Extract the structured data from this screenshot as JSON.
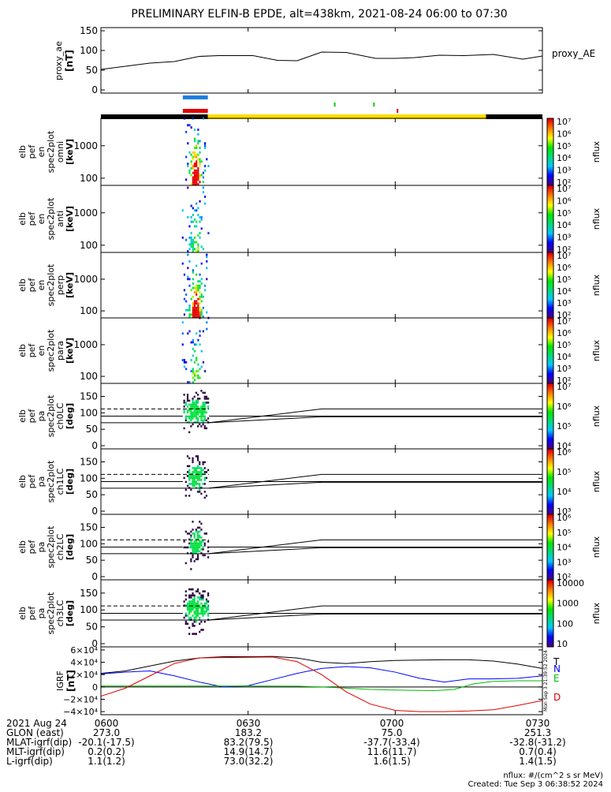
{
  "title": "PRELIMINARY ELFIN-B EPDE, alt=438km, 2021-08-24 06:00 to 07:30",
  "chart_data": [
    {
      "type": "line",
      "id": "proxy_ae",
      "ylabel": [
        "proxy_ae",
        "[nT]"
      ],
      "legend": "proxy_AE",
      "ylim": [
        0,
        150
      ],
      "yticks": [
        "0",
        "50",
        "100",
        "150"
      ],
      "yticks_values": [
        0,
        50,
        100,
        150
      ],
      "x_minutes": [
        0,
        10,
        15,
        20,
        24,
        31,
        36,
        40,
        45,
        50,
        56,
        60,
        64,
        69,
        74,
        80,
        86,
        90
      ],
      "values": [
        52,
        68,
        72,
        85,
        87,
        87,
        75,
        74,
        96,
        95,
        80,
        80,
        82,
        88,
        87,
        90,
        78,
        86
      ]
    },
    {
      "type": "timeline",
      "id": "status-bars",
      "bars": [
        {
          "color": "#1f7fe0",
          "start_min": 16.7,
          "end_min": 21.8
        },
        {
          "color": "#e00000",
          "start_min": 16.7,
          "end_min": 21.8
        }
      ],
      "ticks": [
        {
          "color": "#00cc00",
          "min": 47.5
        },
        {
          "color": "#00cc00",
          "min": 55.5
        },
        {
          "color": "#e00000",
          "min": 60.3
        }
      ],
      "strip": [
        {
          "color": "#000000",
          "start_min": 0,
          "end_min": 21.8
        },
        {
          "color": "#ffdd00",
          "start_min": 21.8,
          "end_min": 78.5
        },
        {
          "color": "#000000",
          "start_min": 78.5,
          "end_min": 90
        }
      ]
    },
    {
      "type": "heatmap",
      "id": "spec-omni",
      "ylabel": [
        "elb",
        "pef",
        "en",
        "spec2plot",
        "omni",
        "[keV]"
      ],
      "yticks": [
        "100",
        "1000"
      ],
      "yticks_values": [
        100,
        1000
      ],
      "scale": "log",
      "ylim": [
        60,
        7000
      ],
      "cbar_label": "nflux",
      "cbar_ticks": [
        "10²",
        "10³",
        "10⁴",
        "10⁵",
        "10⁶",
        "10⁷"
      ]
    },
    {
      "type": "heatmap",
      "id": "spec-anti",
      "ylabel": [
        "elb",
        "pef",
        "en",
        "spec2plot",
        "anti",
        "[keV]"
      ],
      "yticks": [
        "100",
        "1000"
      ],
      "yticks_values": [
        100,
        1000
      ],
      "scale": "log",
      "ylim": [
        60,
        7000
      ],
      "cbar_label": "nflux",
      "cbar_ticks": [
        "10²",
        "10³",
        "10⁴",
        "10⁵",
        "10⁶",
        "10⁷"
      ]
    },
    {
      "type": "heatmap",
      "id": "spec-perp",
      "ylabel": [
        "elb",
        "pef",
        "en",
        "spec2plot",
        "perp",
        "[keV]"
      ],
      "yticks": [
        "100",
        "1000"
      ],
      "yticks_values": [
        100,
        1000
      ],
      "scale": "log",
      "ylim": [
        60,
        7000
      ],
      "cbar_label": "nflux",
      "cbar_ticks": [
        "10²",
        "10³",
        "10⁴",
        "10⁵",
        "10⁶",
        "10⁷"
      ]
    },
    {
      "type": "heatmap",
      "id": "spec-para",
      "ylabel": [
        "elb",
        "pef",
        "en",
        "spec2plot",
        "para",
        "[keV]"
      ],
      "yticks": [
        "100",
        "1000"
      ],
      "yticks_values": [
        100,
        1000
      ],
      "scale": "log",
      "ylim": [
        60,
        7000
      ],
      "cbar_label": "nflux",
      "cbar_ticks": [
        "10²",
        "10³",
        "10⁴",
        "10⁵",
        "10⁶",
        "10⁷"
      ]
    },
    {
      "type": "heatmap",
      "id": "pa-ch0",
      "ylabel": [
        "elb",
        "pef",
        "pa",
        "spec2plot",
        "ch0LC",
        "[deg]"
      ],
      "yticks": [
        "0",
        "50",
        "100",
        "150"
      ],
      "yticks_values": [
        0,
        50,
        100,
        150
      ],
      "ylim": [
        0,
        180
      ],
      "cbar_label": "nflux",
      "cbar_ticks": [
        "10⁴",
        "10⁵",
        "10⁶",
        "10⁷"
      ]
    },
    {
      "type": "heatmap",
      "id": "pa-ch1",
      "ylabel": [
        "elb",
        "pef",
        "pa",
        "spec2plot",
        "ch1LC",
        "[deg]"
      ],
      "yticks": [
        "0",
        "50",
        "100",
        "150"
      ],
      "yticks_values": [
        0,
        50,
        100,
        150
      ],
      "ylim": [
        0,
        180
      ],
      "cbar_label": "nflux",
      "cbar_ticks": [
        "10³",
        "10⁴",
        "10⁵",
        "10⁶"
      ]
    },
    {
      "type": "heatmap",
      "id": "pa-ch2",
      "ylabel": [
        "elb",
        "pef",
        "pa",
        "spec2plot",
        "ch2LC",
        "[deg]"
      ],
      "yticks": [
        "0",
        "50",
        "100",
        "150"
      ],
      "yticks_values": [
        0,
        50,
        100,
        150
      ],
      "ylim": [
        0,
        180
      ],
      "cbar_label": "nflux",
      "cbar_ticks": [
        "10²",
        "10³",
        "10⁴",
        "10⁵",
        "10⁶"
      ]
    },
    {
      "type": "heatmap",
      "id": "pa-ch3",
      "ylabel": [
        "elb",
        "pef",
        "pa",
        "spec2plot",
        "ch3LC",
        "[deg]"
      ],
      "yticks": [
        "0",
        "50",
        "100",
        "150"
      ],
      "yticks_values": [
        0,
        50,
        100,
        150
      ],
      "ylim": [
        0,
        180
      ],
      "cbar_label": "nflux",
      "cbar_ticks": [
        "10",
        "100",
        "1000",
        "10000"
      ]
    },
    {
      "type": "line",
      "id": "igrf",
      "ylabel": [
        "IGRF",
        "[nT]"
      ],
      "ylim": [
        -45000,
        65000
      ],
      "yticks": [
        "−4×10⁴",
        "−2×10⁴",
        "0",
        "2×10⁴",
        "4×10⁴",
        "6×10⁴"
      ],
      "yticks_values": [
        -40000,
        -20000,
        0,
        20000,
        40000,
        60000
      ],
      "stamp": "Mon Sep  3 21:39:52 2024",
      "series": [
        {
          "name": "T",
          "color": "#000000",
          "x_minutes": [
            0,
            5,
            10,
            15,
            20,
            25,
            30,
            35,
            40,
            45,
            50,
            55,
            60,
            65,
            70,
            75,
            80,
            85,
            90
          ],
          "values": [
            22000,
            26000,
            34000,
            42000,
            47000,
            49000,
            49000,
            49500,
            47000,
            40000,
            38000,
            41000,
            43000,
            43500,
            44000,
            44000,
            42000,
            37000,
            30000
          ]
        },
        {
          "name": "N",
          "color": "#0000ff",
          "x_minutes": [
            0,
            5,
            10,
            15,
            20,
            25,
            30,
            35,
            40,
            45,
            50,
            55,
            60,
            65,
            70,
            75,
            80,
            85,
            90
          ],
          "values": [
            21000,
            24000,
            26000,
            18000,
            8000,
            0,
            2000,
            12000,
            22000,
            30000,
            33000,
            31000,
            24000,
            14000,
            8000,
            13000,
            13000,
            14000,
            18000
          ]
        },
        {
          "name": "E",
          "color": "#00bb00",
          "x_minutes": [
            0,
            10,
            20,
            30,
            40,
            45,
            50,
            55,
            60,
            63,
            68,
            72,
            76,
            80,
            85,
            90
          ],
          "values": [
            1500,
            1500,
            1500,
            1500,
            1200,
            0,
            -2000,
            -4000,
            -5000,
            -5500,
            -6000,
            -4000,
            5000,
            9000,
            10000,
            10000
          ]
        },
        {
          "name": "D",
          "color": "#dd0000",
          "x_minutes": [
            0,
            5,
            10,
            15,
            20,
            25,
            30,
            35,
            40,
            45,
            50,
            55,
            60,
            65,
            70,
            75,
            80,
            85,
            90
          ],
          "values": [
            -15000,
            -2000,
            18000,
            38000,
            47000,
            47500,
            48000,
            48500,
            41000,
            20000,
            -8000,
            -28000,
            -38000,
            -40000,
            -40000,
            -39000,
            -37000,
            -30000,
            -22000
          ]
        }
      ]
    }
  ],
  "x_axis": {
    "ticks": [
      "0600",
      "0630",
      "0700",
      "0730"
    ],
    "ticks_minutes": [
      0,
      30,
      60,
      90
    ]
  },
  "footer": {
    "rows": [
      {
        "label": "2021 Aug 24",
        "values": []
      },
      {
        "label": "GLON (east)",
        "values": [
          "273.0",
          "183.2",
          "75.0",
          "251.3"
        ]
      },
      {
        "label": "MLAT-igrf(dip)",
        "values": [
          "-20.1(-17.5)",
          "83.2(79.5)",
          "-37.7(-33.4)",
          "-32.8(-31.2)"
        ]
      },
      {
        "label": "MLT-igrf(dip)",
        "values": [
          "0.2(0.2)",
          "14.9(14.7)",
          "11.6(11.7)",
          "0.7(0.4)"
        ]
      },
      {
        "label": "L-igrf(dip)",
        "values": [
          "1.1(1.2)",
          "73.0(32.2)",
          "1.6(1.5)",
          "1.4(1.5)"
        ]
      }
    ],
    "units_note": "nflux: #/(cm^2 s sr MeV)",
    "created": "Created: Tue Sep  3 06:38:52 2024"
  }
}
